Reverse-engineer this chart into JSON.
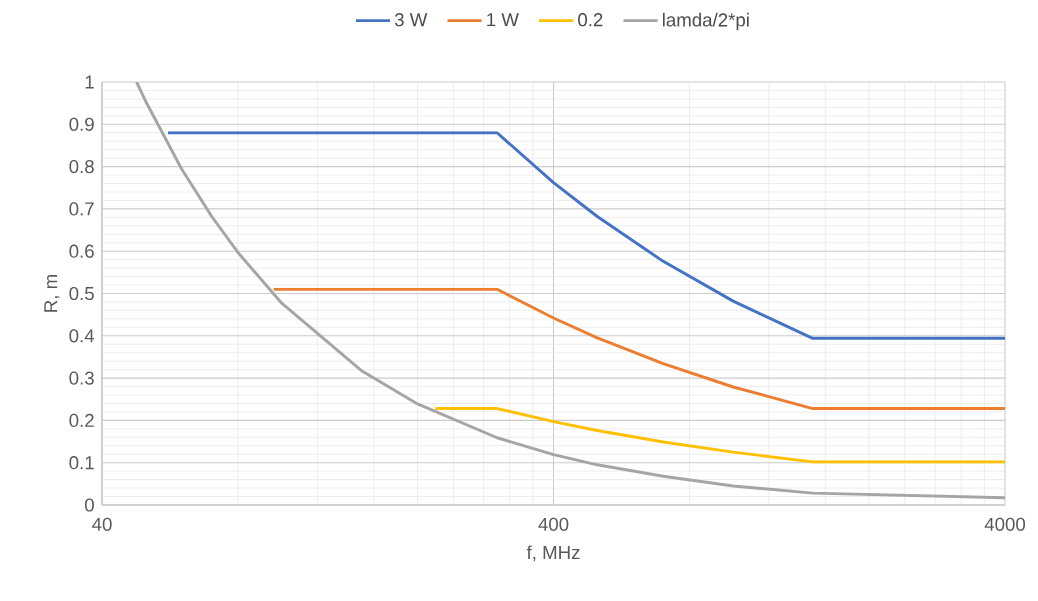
{
  "chart_data": {
    "type": "line",
    "xlabel": "f, MHz",
    "ylabel": "R, m",
    "log": "x",
    "xlim": [
      40,
      4000
    ],
    "xticks": [
      40,
      400,
      4000
    ],
    "ylim": [
      0,
      1
    ],
    "yticks": [
      0,
      0.1,
      0.2,
      0.3,
      0.4,
      0.5,
      0.6,
      0.7,
      0.8,
      0.9,
      1
    ],
    "grid": true,
    "legend": "top",
    "marker": "none",
    "line_style": "solid",
    "series": [
      {
        "name": "3 W",
        "color": "#4472c4",
        "x": [
          56,
          300,
          400,
          500,
          700,
          1000,
          1500,
          4000
        ],
        "values": [
          0.88,
          0.88,
          0.762,
          0.682,
          0.576,
          0.482,
          0.394,
          0.394
        ]
      },
      {
        "name": "1 W",
        "color": "#ed7d31",
        "x": [
          96,
          300,
          400,
          500,
          700,
          1000,
          1500,
          4000
        ],
        "values": [
          0.51,
          0.51,
          0.442,
          0.395,
          0.334,
          0.279,
          0.228,
          0.228
        ]
      },
      {
        "name": "0.2",
        "color": "#ffc000",
        "x": [
          219,
          300,
          400,
          500,
          700,
          1000,
          1500,
          4000
        ],
        "values": [
          0.228,
          0.228,
          0.197,
          0.176,
          0.149,
          0.125,
          0.102,
          0.102
        ]
      },
      {
        "name": "lamda/2*pi",
        "color": "#a5a5a5",
        "x": [
          47.7,
          50,
          60,
          70,
          80,
          100,
          150,
          200,
          300,
          400,
          500,
          700,
          1000,
          1500,
          4000
        ],
        "values": [
          1,
          0.954,
          0.795,
          0.682,
          0.597,
          0.477,
          0.318,
          0.239,
          0.159,
          0.119,
          0.095,
          0.068,
          0.045,
          0.028,
          0.017
        ]
      }
    ]
  }
}
